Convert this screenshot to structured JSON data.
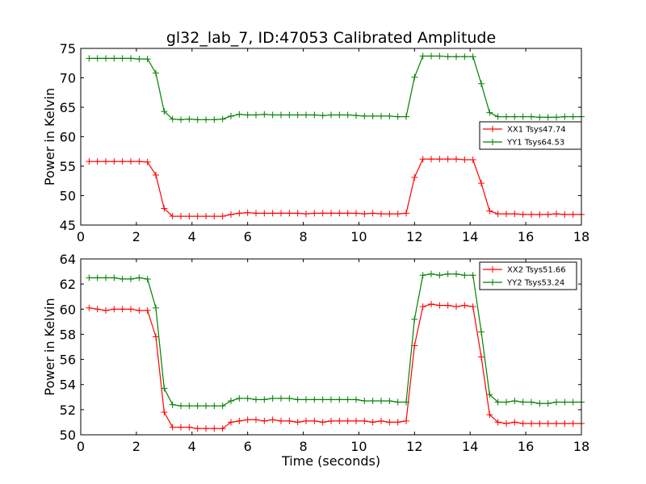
{
  "chart_data": [
    {
      "type": "line",
      "title": "gl32_lab_7, ID:47053 Calibrated Amplitude",
      "xlabel": "",
      "ylabel": "Power in Kelvin",
      "xlim": [
        0,
        18
      ],
      "ylim": [
        45,
        75
      ],
      "xticks": [
        0,
        2,
        4,
        6,
        8,
        10,
        12,
        14,
        16,
        18
      ],
      "yticks": [
        45,
        50,
        55,
        60,
        65,
        70,
        75
      ],
      "legend_position": "center-right",
      "marker": "+",
      "series": [
        {
          "name": "XX1 Tsys47.74",
          "color": "#ff0000",
          "x": [
            0.3,
            0.6,
            0.9,
            1.2,
            1.5,
            1.8,
            2.1,
            2.4,
            2.7,
            3.0,
            3.3,
            3.6,
            3.9,
            4.2,
            4.5,
            4.8,
            5.1,
            5.4,
            5.7,
            6.0,
            6.3,
            6.6,
            6.9,
            7.2,
            7.5,
            7.8,
            8.1,
            8.4,
            8.7,
            9.0,
            9.3,
            9.6,
            9.9,
            10.2,
            10.5,
            10.8,
            11.1,
            11.4,
            11.7,
            12.0,
            12.3,
            12.6,
            12.9,
            13.2,
            13.5,
            13.8,
            14.1,
            14.4,
            14.7,
            15.0,
            15.3,
            15.6,
            15.9,
            16.2,
            16.5,
            16.8,
            17.1,
            17.4,
            17.7,
            18.0
          ],
          "y": [
            55.8,
            55.8,
            55.8,
            55.8,
            55.8,
            55.8,
            55.8,
            55.7,
            53.5,
            47.8,
            46.5,
            46.5,
            46.5,
            46.5,
            46.5,
            46.5,
            46.5,
            46.8,
            47.0,
            47.1,
            47.0,
            47.0,
            47.0,
            47.0,
            47.0,
            47.0,
            46.9,
            47.0,
            47.0,
            47.0,
            47.0,
            47.0,
            47.0,
            46.9,
            47.0,
            46.9,
            46.9,
            46.9,
            47.0,
            53.1,
            56.2,
            56.2,
            56.2,
            56.2,
            56.2,
            56.1,
            56.1,
            52.1,
            47.4,
            46.9,
            46.9,
            46.9,
            46.8,
            46.8,
            46.8,
            46.8,
            46.9,
            46.8,
            46.8,
            46.8
          ]
        },
        {
          "name": "YY1 Tsys64.53",
          "color": "#008000",
          "x": [
            0.3,
            0.6,
            0.9,
            1.2,
            1.5,
            1.8,
            2.1,
            2.4,
            2.7,
            3.0,
            3.3,
            3.6,
            3.9,
            4.2,
            4.5,
            4.8,
            5.1,
            5.4,
            5.7,
            6.0,
            6.3,
            6.6,
            6.9,
            7.2,
            7.5,
            7.8,
            8.1,
            8.4,
            8.7,
            9.0,
            9.3,
            9.6,
            9.9,
            10.2,
            10.5,
            10.8,
            11.1,
            11.4,
            11.7,
            12.0,
            12.3,
            12.6,
            12.9,
            13.2,
            13.5,
            13.8,
            14.1,
            14.4,
            14.7,
            15.0,
            15.3,
            15.6,
            15.9,
            16.2,
            16.5,
            16.8,
            17.1,
            17.4,
            17.7,
            18.0
          ],
          "y": [
            73.3,
            73.3,
            73.3,
            73.3,
            73.3,
            73.3,
            73.2,
            73.2,
            70.8,
            64.3,
            63.0,
            62.9,
            63.0,
            62.9,
            62.9,
            62.9,
            63.0,
            63.5,
            63.8,
            63.7,
            63.7,
            63.8,
            63.7,
            63.7,
            63.7,
            63.7,
            63.7,
            63.7,
            63.6,
            63.7,
            63.7,
            63.7,
            63.6,
            63.5,
            63.5,
            63.5,
            63.5,
            63.4,
            63.4,
            70.1,
            73.7,
            73.7,
            73.7,
            73.6,
            73.6,
            73.6,
            73.6,
            69.0,
            64.1,
            63.4,
            63.4,
            63.4,
            63.4,
            63.4,
            63.3,
            63.3,
            63.3,
            63.4,
            63.4,
            63.4
          ]
        }
      ]
    },
    {
      "type": "line",
      "title": "",
      "xlabel": "Time (seconds)",
      "ylabel": "Power in Kelvin",
      "xlim": [
        0,
        18
      ],
      "ylim": [
        50,
        64
      ],
      "xticks": [
        0,
        2,
        4,
        6,
        8,
        10,
        12,
        14,
        16,
        18
      ],
      "yticks": [
        50,
        52,
        54,
        56,
        58,
        60,
        62,
        64
      ],
      "legend_position": "top-right",
      "marker": "+",
      "series": [
        {
          "name": "XX2 Tsys51.66",
          "color": "#ff0000",
          "x": [
            0.3,
            0.6,
            0.9,
            1.2,
            1.5,
            1.8,
            2.1,
            2.4,
            2.7,
            3.0,
            3.3,
            3.6,
            3.9,
            4.2,
            4.5,
            4.8,
            5.1,
            5.4,
            5.7,
            6.0,
            6.3,
            6.6,
            6.9,
            7.2,
            7.5,
            7.8,
            8.1,
            8.4,
            8.7,
            9.0,
            9.3,
            9.6,
            9.9,
            10.2,
            10.5,
            10.8,
            11.1,
            11.4,
            11.7,
            12.0,
            12.3,
            12.6,
            12.9,
            13.2,
            13.5,
            13.8,
            14.1,
            14.4,
            14.7,
            15.0,
            15.3,
            15.6,
            15.9,
            16.2,
            16.5,
            16.8,
            17.1,
            17.4,
            17.7,
            18.0
          ],
          "y": [
            60.1,
            60.0,
            59.9,
            60.0,
            60.0,
            60.0,
            59.9,
            59.9,
            57.8,
            51.8,
            50.6,
            50.6,
            50.6,
            50.5,
            50.5,
            50.5,
            50.5,
            51.0,
            51.1,
            51.2,
            51.2,
            51.1,
            51.2,
            51.1,
            51.1,
            51.0,
            51.1,
            51.1,
            51.0,
            51.1,
            51.1,
            51.1,
            51.1,
            51.1,
            51.0,
            51.1,
            51.0,
            51.0,
            51.1,
            57.1,
            60.2,
            60.4,
            60.3,
            60.3,
            60.2,
            60.3,
            60.2,
            56.2,
            51.6,
            51.0,
            50.9,
            51.0,
            50.9,
            50.9,
            50.9,
            50.9,
            50.9,
            50.9,
            50.9,
            50.9
          ]
        },
        {
          "name": "YY2 Tsys53.24",
          "color": "#008000",
          "x": [
            0.3,
            0.6,
            0.9,
            1.2,
            1.5,
            1.8,
            2.1,
            2.4,
            2.7,
            3.0,
            3.3,
            3.6,
            3.9,
            4.2,
            4.5,
            4.8,
            5.1,
            5.4,
            5.7,
            6.0,
            6.3,
            6.6,
            6.9,
            7.2,
            7.5,
            7.8,
            8.1,
            8.4,
            8.7,
            9.0,
            9.3,
            9.6,
            9.9,
            10.2,
            10.5,
            10.8,
            11.1,
            11.4,
            11.7,
            12.0,
            12.3,
            12.6,
            12.9,
            13.2,
            13.5,
            13.8,
            14.1,
            14.4,
            14.7,
            15.0,
            15.3,
            15.6,
            15.9,
            16.2,
            16.5,
            16.8,
            17.1,
            17.4,
            17.7,
            18.0
          ],
          "y": [
            62.5,
            62.5,
            62.5,
            62.5,
            62.4,
            62.4,
            62.5,
            62.4,
            60.1,
            53.7,
            52.4,
            52.3,
            52.3,
            52.3,
            52.3,
            52.3,
            52.3,
            52.7,
            52.9,
            52.9,
            52.8,
            52.8,
            52.9,
            52.9,
            52.9,
            52.8,
            52.8,
            52.8,
            52.8,
            52.8,
            52.8,
            52.8,
            52.8,
            52.7,
            52.7,
            52.7,
            52.7,
            52.6,
            52.6,
            59.2,
            62.7,
            62.8,
            62.7,
            62.8,
            62.8,
            62.7,
            62.7,
            58.2,
            53.2,
            52.6,
            52.6,
            52.7,
            52.6,
            52.6,
            52.5,
            52.5,
            52.6,
            52.6,
            52.6,
            52.6
          ]
        }
      ]
    }
  ]
}
